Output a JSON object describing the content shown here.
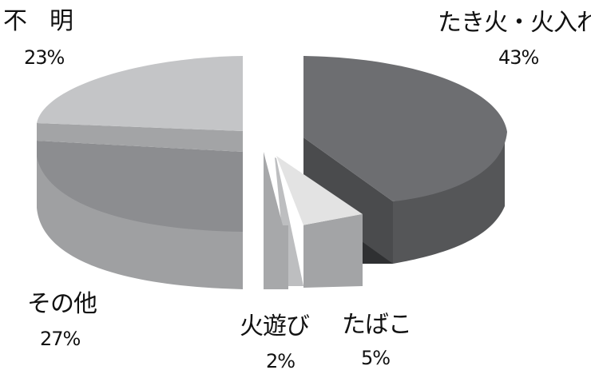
{
  "chart_data": {
    "type": "pie",
    "title": "",
    "style": "3d-exploded",
    "slices": [
      {
        "label": "たき火・火入れ",
        "value": 43,
        "display": "43%",
        "color": "#6d6e71"
      },
      {
        "label": "たばこ",
        "value": 5,
        "display": "5%",
        "color": "#e3e3e3"
      },
      {
        "label": "火遊び",
        "value": 2,
        "display": "2%",
        "color": "#a7a8aa"
      },
      {
        "label": "その他",
        "value": 27,
        "display": "27%",
        "color": "#8c8d90"
      },
      {
        "label": "不　明",
        "value": 23,
        "display": "23%",
        "color": "#c4c5c7"
      }
    ]
  }
}
